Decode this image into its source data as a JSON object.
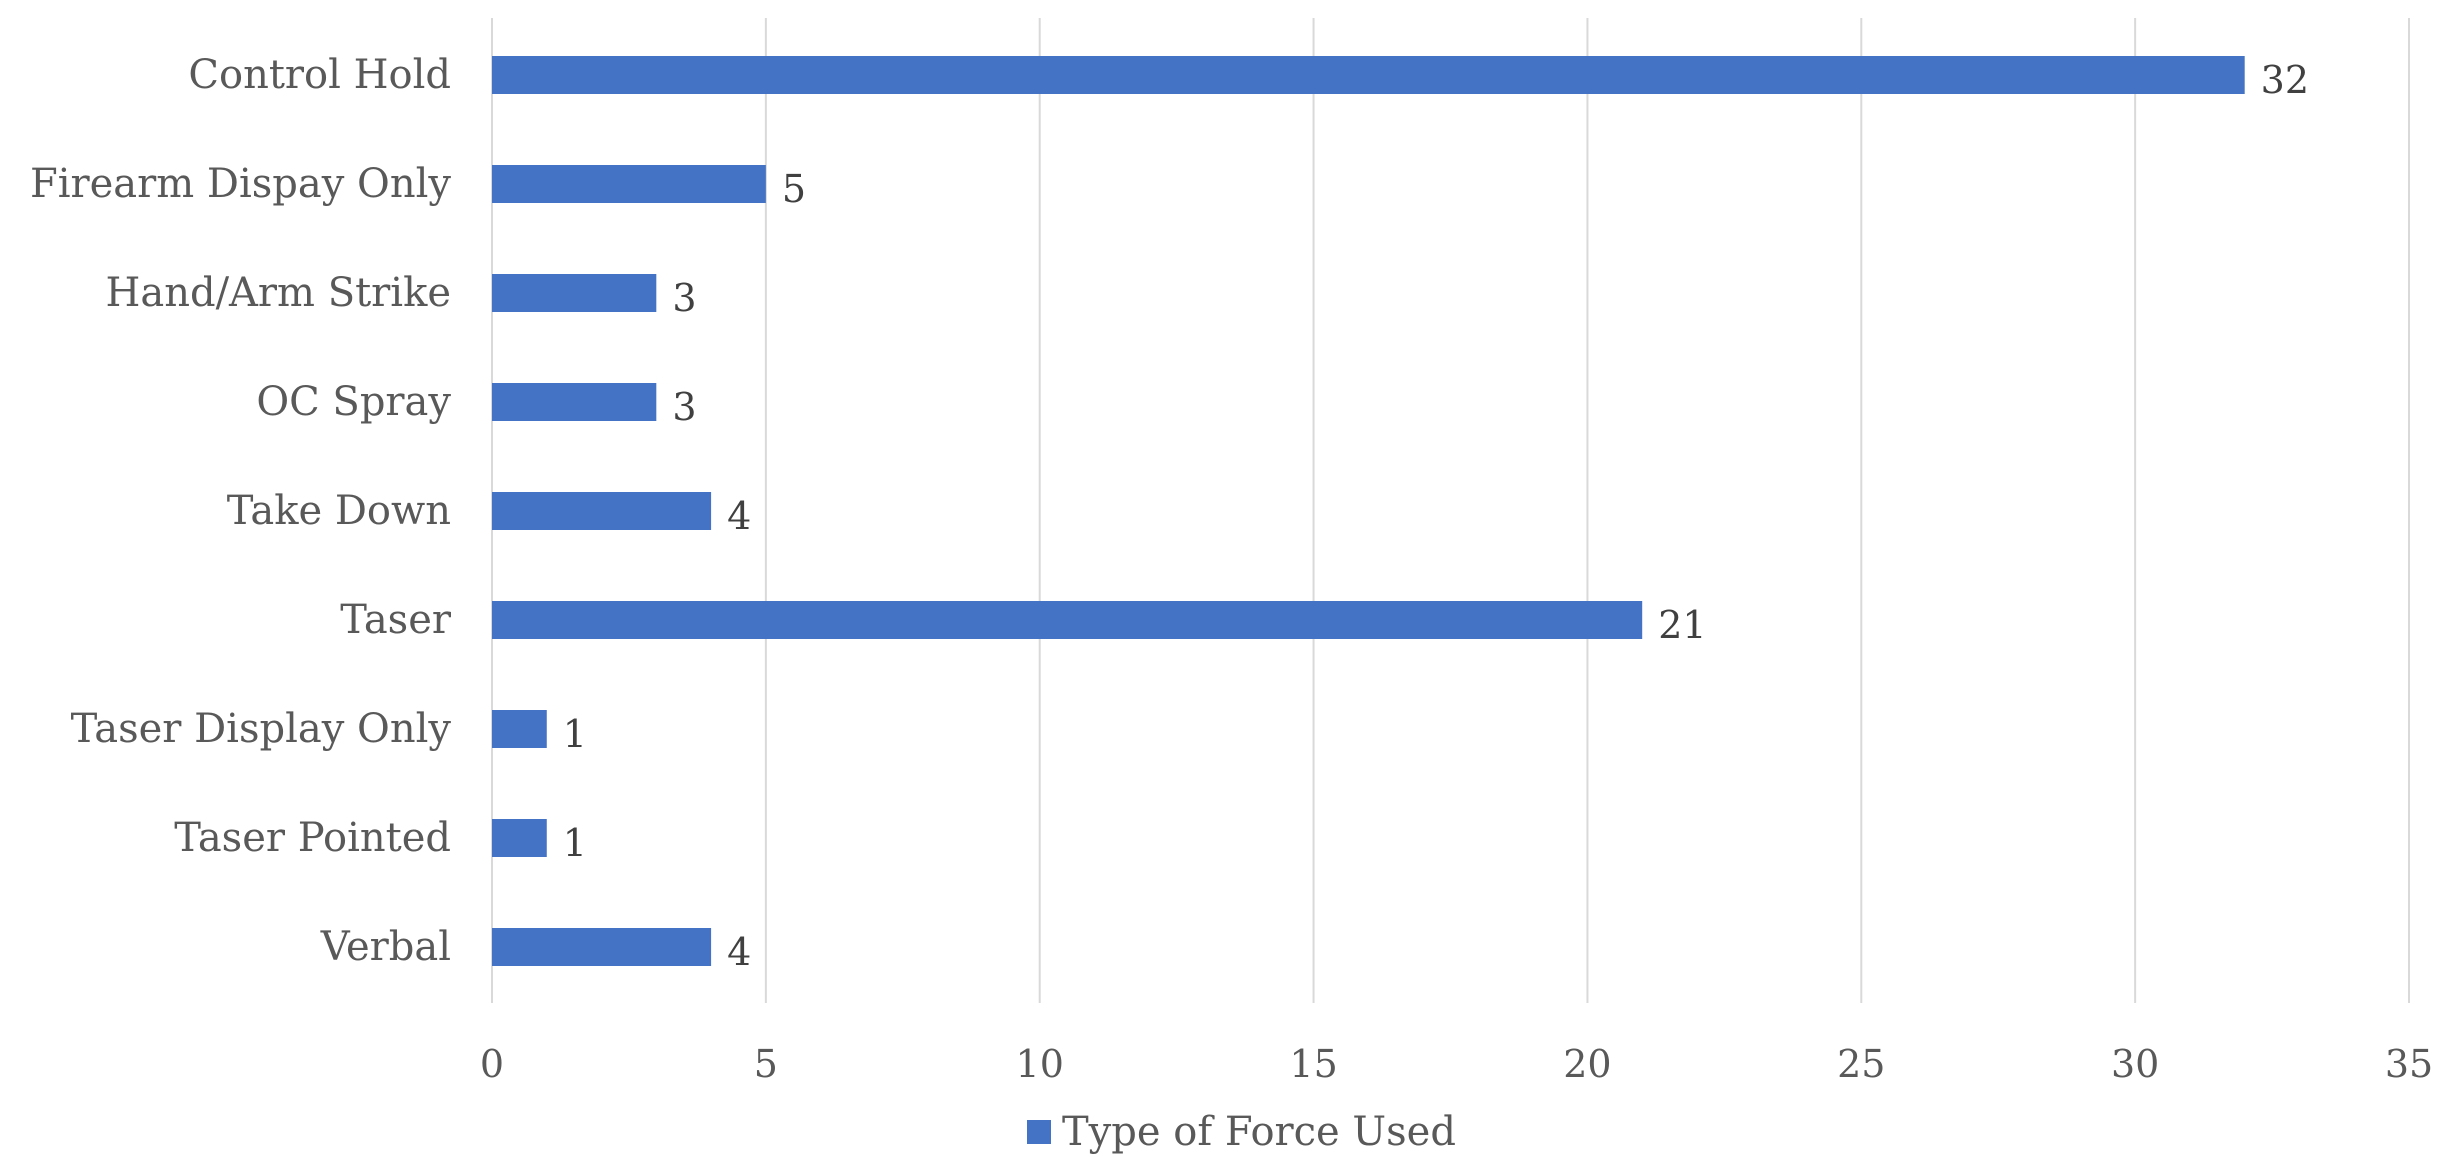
{
  "chart_data": {
    "type": "bar",
    "orientation": "horizontal",
    "categories": [
      "Control Hold",
      "Firearm Dispay Only",
      "Hand/Arm Strike",
      "OC Spray",
      "Take Down",
      "Taser",
      "Taser Display Only",
      "Taser Pointed",
      "Verbal"
    ],
    "series": [
      {
        "name": "Type of Force Used",
        "values": [
          32,
          5,
          3,
          3,
          4,
          21,
          1,
          1,
          4
        ],
        "color": "#4472c4"
      }
    ],
    "xlim": [
      0,
      35
    ],
    "xticks": [
      0,
      5,
      10,
      15,
      20,
      25,
      30,
      35
    ],
    "grid": true,
    "data_labels": true,
    "legend_position": "bottom",
    "title": "",
    "xlabel": "",
    "ylabel": ""
  }
}
